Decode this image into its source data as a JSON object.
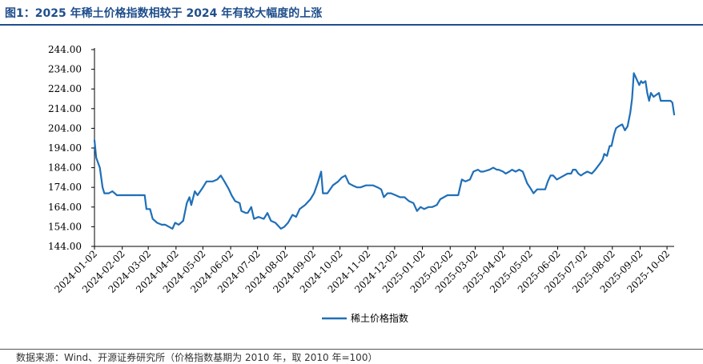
{
  "title": "图1：2025 年稀土价格指数相较于 2024 年有较大幅度的上涨",
  "source": "数据来源：Wind、开源证券研究所（价格指数基期为 2010 年，取 2010 年=100）",
  "colors": {
    "line": "#1f6fb8",
    "title": "#1f4e8c",
    "axis": "#000000"
  },
  "chart_data": {
    "type": "line",
    "ylim": [
      144,
      244
    ],
    "yticks": [
      "144.00",
      "154.00",
      "164.00",
      "174.00",
      "184.00",
      "194.00",
      "204.00",
      "214.00",
      "224.00",
      "234.00",
      "244.00"
    ],
    "xticks": [
      "2024-01-02",
      "2024-02-02",
      "2024-03-02",
      "2024-04-02",
      "2024-05-02",
      "2024-06-02",
      "2024-07-02",
      "2024-08-02",
      "2024-09-02",
      "2024-10-02",
      "2024-11-02",
      "2024-12-02",
      "2025-01-02",
      "2025-02-02",
      "2025-03-02",
      "2025-04-02",
      "2025-05-02",
      "2025-06-02",
      "2025-07-02",
      "2025-08-02",
      "2025-09-02",
      "2025-10-02"
    ],
    "grid": false,
    "legend_position": "bottom-center",
    "series": [
      {
        "name": "稀土价格指数",
        "points": [
          [
            "2024-01-02",
            198
          ],
          [
            "2024-01-04",
            189
          ],
          [
            "2024-01-08",
            184
          ],
          [
            "2024-01-11",
            174
          ],
          [
            "2024-01-13",
            171
          ],
          [
            "2024-01-18",
            171
          ],
          [
            "2024-01-22",
            172
          ],
          [
            "2024-01-27",
            170
          ],
          [
            "2024-02-05",
            170
          ],
          [
            "2024-02-15",
            170
          ],
          [
            "2024-02-27",
            170
          ],
          [
            "2024-02-29",
            163
          ],
          [
            "2024-03-04",
            163
          ],
          [
            "2024-03-07",
            158
          ],
          [
            "2024-03-12",
            156
          ],
          [
            "2024-03-17",
            155
          ],
          [
            "2024-03-21",
            155
          ],
          [
            "2024-03-25",
            154
          ],
          [
            "2024-03-29",
            153
          ],
          [
            "2024-04-01",
            156
          ],
          [
            "2024-04-05",
            155
          ],
          [
            "2024-04-10",
            157
          ],
          [
            "2024-04-14",
            166
          ],
          [
            "2024-04-17",
            169
          ],
          [
            "2024-04-19",
            165
          ],
          [
            "2024-04-23",
            172
          ],
          [
            "2024-04-26",
            170
          ],
          [
            "2024-05-02",
            174
          ],
          [
            "2024-05-06",
            177
          ],
          [
            "2024-05-13",
            177
          ],
          [
            "2024-05-18",
            178
          ],
          [
            "2024-05-22",
            180
          ],
          [
            "2024-05-26",
            177
          ],
          [
            "2024-05-31",
            173
          ],
          [
            "2024-06-03",
            170
          ],
          [
            "2024-06-07",
            167
          ],
          [
            "2024-06-12",
            166
          ],
          [
            "2024-06-14",
            162
          ],
          [
            "2024-06-19",
            161
          ],
          [
            "2024-06-21",
            161
          ],
          [
            "2024-06-25",
            164
          ],
          [
            "2024-06-28",
            158
          ],
          [
            "2024-07-03",
            159
          ],
          [
            "2024-07-09",
            158
          ],
          [
            "2024-07-13",
            161
          ],
          [
            "2024-07-17",
            157
          ],
          [
            "2024-07-22",
            156
          ],
          [
            "2024-07-28",
            153
          ],
          [
            "2024-08-01",
            154
          ],
          [
            "2024-08-05",
            156
          ],
          [
            "2024-08-10",
            160
          ],
          [
            "2024-08-14",
            159
          ],
          [
            "2024-08-18",
            163
          ],
          [
            "2024-08-24",
            165
          ],
          [
            "2024-08-30",
            168
          ],
          [
            "2024-09-03",
            171
          ],
          [
            "2024-09-07",
            176
          ],
          [
            "2024-09-11",
            182
          ],
          [
            "2024-09-13",
            171
          ],
          [
            "2024-09-18",
            171
          ],
          [
            "2024-09-24",
            175
          ],
          [
            "2024-09-30",
            177
          ],
          [
            "2024-10-04",
            179
          ],
          [
            "2024-10-08",
            180
          ],
          [
            "2024-10-12",
            176
          ],
          [
            "2024-10-16",
            175
          ],
          [
            "2024-10-21",
            174
          ],
          [
            "2024-10-25",
            174
          ],
          [
            "2024-10-31",
            175
          ],
          [
            "2024-11-04",
            175
          ],
          [
            "2024-11-08",
            175
          ],
          [
            "2024-11-13",
            174
          ],
          [
            "2024-11-17",
            173
          ],
          [
            "2024-11-20",
            169
          ],
          [
            "2024-11-24",
            171
          ],
          [
            "2024-11-28",
            171
          ],
          [
            "2024-12-03",
            170
          ],
          [
            "2024-12-08",
            169
          ],
          [
            "2024-12-13",
            169
          ],
          [
            "2024-12-18",
            167
          ],
          [
            "2024-12-23",
            166
          ],
          [
            "2024-12-27",
            162
          ],
          [
            "2024-12-31",
            164
          ],
          [
            "2025-01-04",
            163
          ],
          [
            "2025-01-09",
            164
          ],
          [
            "2025-01-13",
            164
          ],
          [
            "2025-01-18",
            165
          ],
          [
            "2025-01-22",
            168
          ],
          [
            "2025-01-26",
            169
          ],
          [
            "2025-01-30",
            170
          ],
          [
            "2025-02-05",
            170
          ],
          [
            "2025-02-09",
            170
          ],
          [
            "2025-02-11",
            170
          ],
          [
            "2025-02-15",
            178
          ],
          [
            "2025-02-19",
            177
          ],
          [
            "2025-02-24",
            178
          ],
          [
            "2025-02-28",
            182
          ],
          [
            "2025-03-05",
            183
          ],
          [
            "2025-03-08",
            182
          ],
          [
            "2025-03-11",
            182
          ],
          [
            "2025-03-18",
            183
          ],
          [
            "2025-03-22",
            184
          ],
          [
            "2025-03-26",
            183
          ],
          [
            "2025-03-28",
            183
          ],
          [
            "2025-04-02",
            182
          ],
          [
            "2025-04-05",
            181
          ],
          [
            "2025-04-09",
            182
          ],
          [
            "2025-04-12",
            183
          ],
          [
            "2025-04-16",
            182
          ],
          [
            "2025-04-20",
            183
          ],
          [
            "2025-04-24",
            182
          ],
          [
            "2025-04-29",
            176
          ],
          [
            "2025-05-02",
            174
          ],
          [
            "2025-05-06",
            171
          ],
          [
            "2025-05-10",
            173
          ],
          [
            "2025-05-15",
            173
          ],
          [
            "2025-05-19",
            173
          ],
          [
            "2025-05-22",
            177
          ],
          [
            "2025-05-25",
            180
          ],
          [
            "2025-05-28",
            180
          ],
          [
            "2025-06-01",
            178
          ],
          [
            "2025-06-05",
            179
          ],
          [
            "2025-06-09",
            180
          ],
          [
            "2025-06-13",
            181
          ],
          [
            "2025-06-17",
            181
          ],
          [
            "2025-06-19",
            183
          ],
          [
            "2025-06-22",
            183
          ],
          [
            "2025-06-25",
            181
          ],
          [
            "2025-06-28",
            180
          ],
          [
            "2025-07-01",
            181
          ],
          [
            "2025-07-05",
            182
          ],
          [
            "2025-07-10",
            181
          ],
          [
            "2025-07-14",
            183
          ],
          [
            "2025-07-19",
            186
          ],
          [
            "2025-07-22",
            188
          ],
          [
            "2025-07-24",
            191
          ],
          [
            "2025-07-27",
            190
          ],
          [
            "2025-07-30",
            195
          ],
          [
            "2025-08-01",
            195
          ],
          [
            "2025-08-04",
            201
          ],
          [
            "2025-08-06",
            204
          ],
          [
            "2025-08-09",
            205
          ],
          [
            "2025-08-13",
            206
          ],
          [
            "2025-08-16",
            203
          ],
          [
            "2025-08-19",
            205
          ],
          [
            "2025-08-22",
            212
          ],
          [
            "2025-08-24",
            219
          ],
          [
            "2025-08-26",
            232
          ],
          [
            "2025-08-28",
            230
          ],
          [
            "2025-09-01",
            226
          ],
          [
            "2025-09-03",
            228
          ],
          [
            "2025-09-05",
            227
          ],
          [
            "2025-09-08",
            228
          ],
          [
            "2025-09-10",
            222
          ],
          [
            "2025-09-12",
            218
          ],
          [
            "2025-09-14",
            222
          ],
          [
            "2025-09-17",
            220
          ],
          [
            "2025-09-20",
            221
          ],
          [
            "2025-09-23",
            222
          ],
          [
            "2025-09-25",
            218
          ],
          [
            "2025-09-28",
            218
          ],
          [
            "2025-10-02",
            218
          ],
          [
            "2025-10-06",
            218
          ],
          [
            "2025-10-08",
            217
          ],
          [
            "2025-10-10",
            211
          ]
        ]
      }
    ]
  }
}
